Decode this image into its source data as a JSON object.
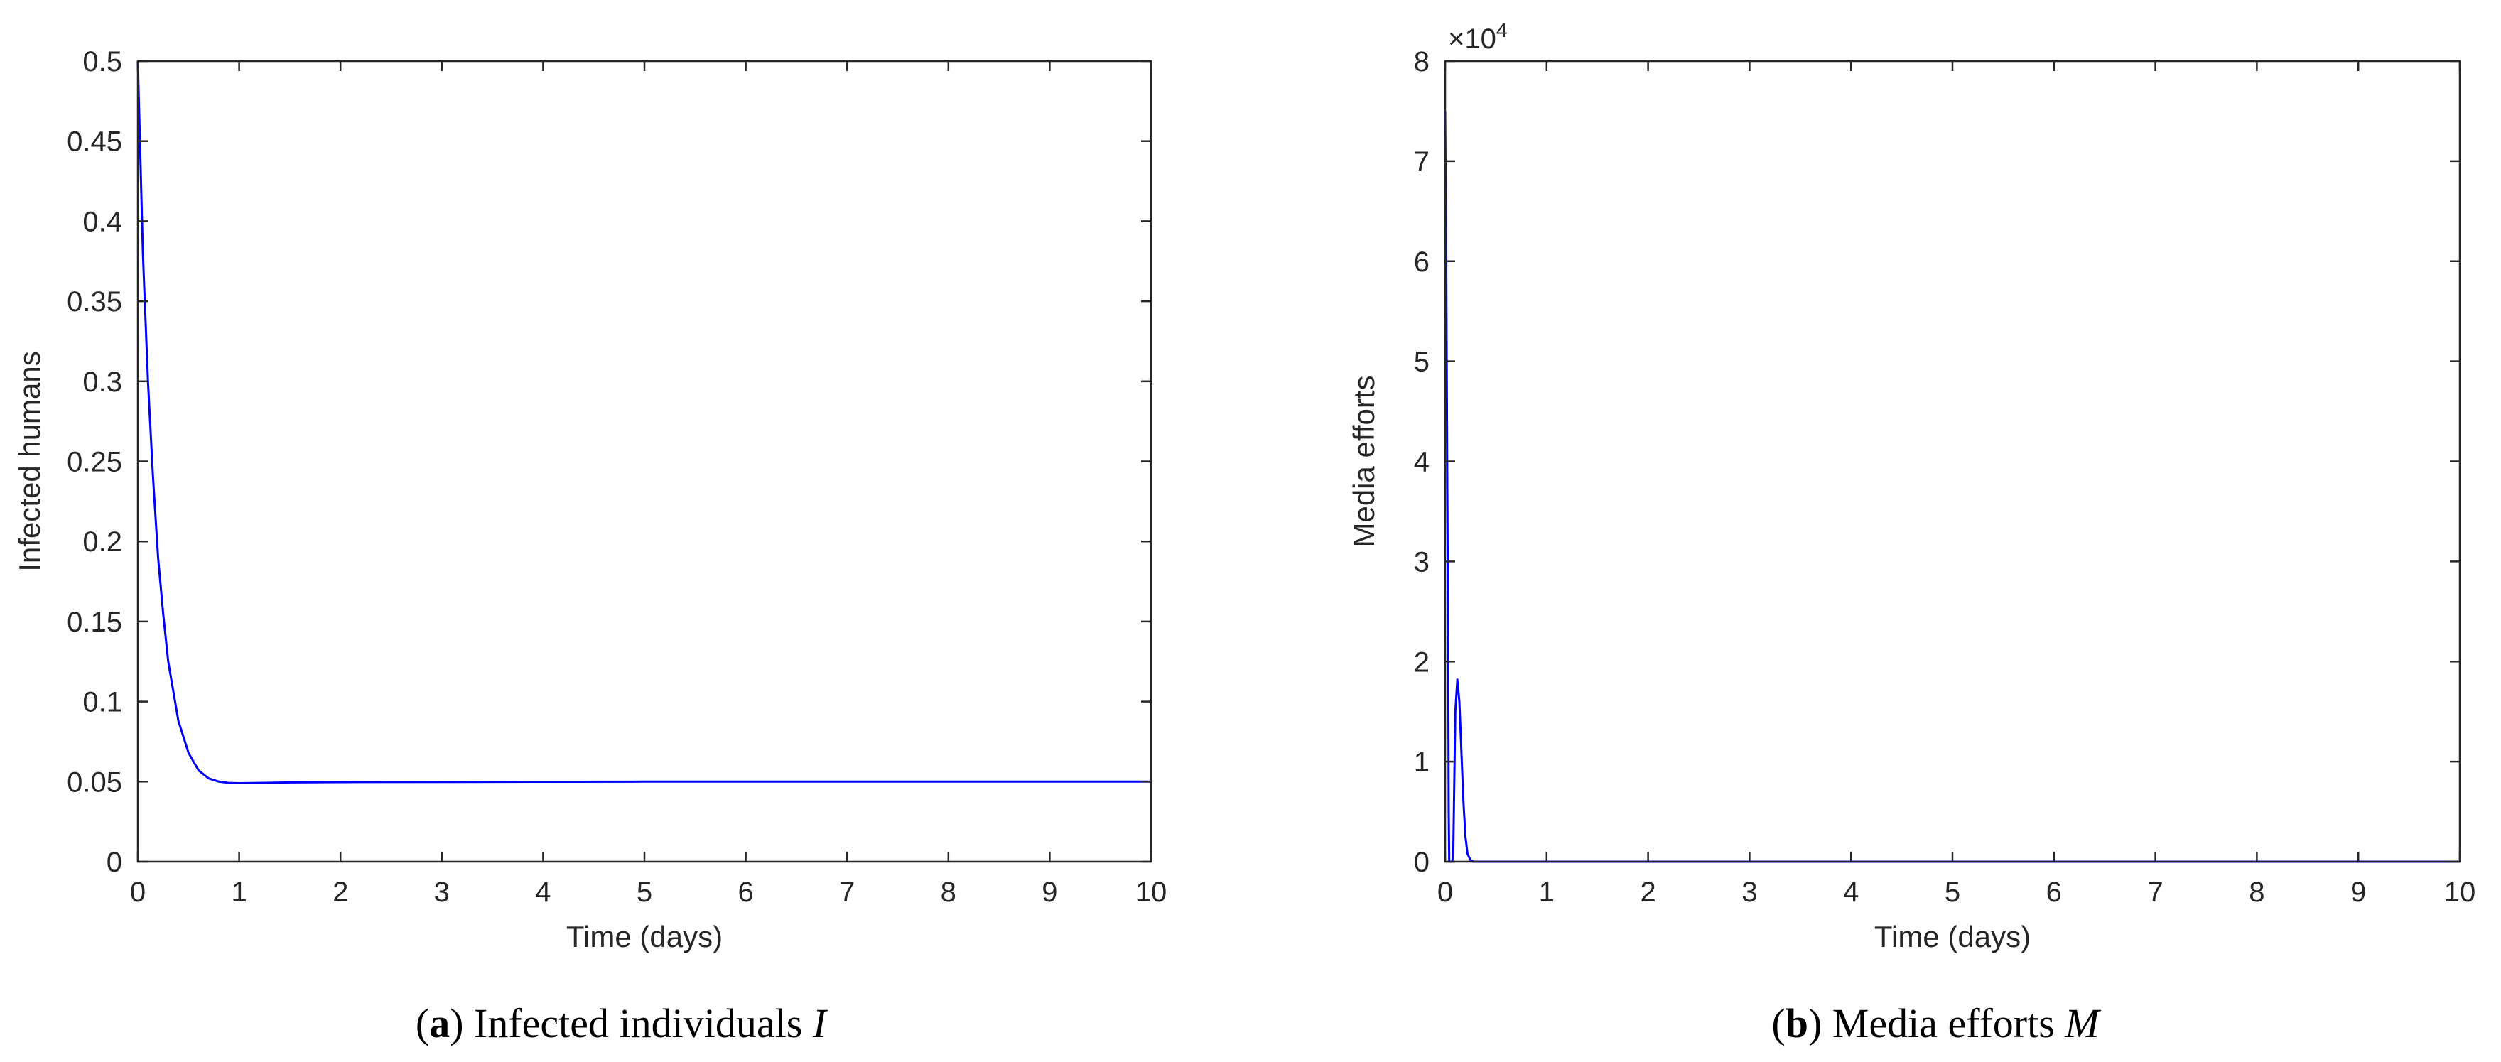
{
  "chart_data": [
    {
      "type": "line",
      "caption_letter": "a",
      "caption_text": "Infected individuals",
      "caption_var": "I",
      "xlabel": "Time (days)",
      "ylabel": "Infected humans",
      "xlim": [
        0,
        10
      ],
      "ylim": [
        0,
        0.5
      ],
      "xticks": [
        "0",
        "1",
        "2",
        "3",
        "4",
        "5",
        "6",
        "7",
        "8",
        "9",
        "10"
      ],
      "yticks": [
        "0",
        "0.05",
        "0.1",
        "0.15",
        "0.2",
        "0.25",
        "0.3",
        "0.35",
        "0.4",
        "0.45",
        "0.5"
      ],
      "line_color": "#0000FF",
      "grid": false,
      "series": [
        {
          "x": [
            0,
            0.05,
            0.1,
            0.15,
            0.2,
            0.25,
            0.3,
            0.4,
            0.5,
            0.6,
            0.7,
            0.8,
            0.9,
            1.0,
            1.2,
            1.5,
            2,
            3,
            4,
            5,
            6,
            7,
            8,
            9,
            10
          ],
          "y": [
            0.5,
            0.38,
            0.3,
            0.24,
            0.19,
            0.155,
            0.125,
            0.088,
            0.068,
            0.057,
            0.052,
            0.05,
            0.0492,
            0.049,
            0.0492,
            0.0495,
            0.0497,
            0.0498,
            0.0499,
            0.05,
            0.05,
            0.05,
            0.05,
            0.05,
            0.05
          ]
        }
      ]
    },
    {
      "type": "line",
      "caption_letter": "b",
      "caption_text": "Media efforts",
      "caption_var": "M",
      "xlabel": "Time (days)",
      "ylabel": "Media efforts",
      "exponent_base": "×10",
      "exponent_power": "4",
      "xlim": [
        0,
        10
      ],
      "ylim": [
        0,
        80000
      ],
      "xticks": [
        "0",
        "1",
        "2",
        "3",
        "4",
        "5",
        "6",
        "7",
        "8",
        "9",
        "10"
      ],
      "yticks": [
        "0",
        "1",
        "2",
        "3",
        "4",
        "5",
        "6",
        "7",
        "8"
      ],
      "line_color": "#0000FF",
      "grid": false,
      "series": [
        {
          "x": [
            0,
            0.01,
            0.02,
            0.03,
            0.035,
            0.04,
            0.045,
            0.05,
            0.07,
            0.08,
            0.09,
            0.1,
            0.12,
            0.14,
            0.16,
            0.18,
            0.2,
            0.22,
            0.25,
            0.28,
            0.3,
            0.35,
            0.4,
            1,
            2,
            3,
            4,
            5,
            6,
            7,
            8,
            9,
            10
          ],
          "y": [
            75000,
            60000,
            40000,
            20000,
            5000,
            0,
            0,
            0,
            0,
            1000,
            8000,
            15000,
            18200,
            16000,
            11000,
            6000,
            2500,
            800,
            150,
            0,
            0,
            0,
            0,
            0,
            0,
            0,
            0,
            0,
            0,
            0,
            0,
            0,
            0
          ]
        }
      ]
    }
  ]
}
